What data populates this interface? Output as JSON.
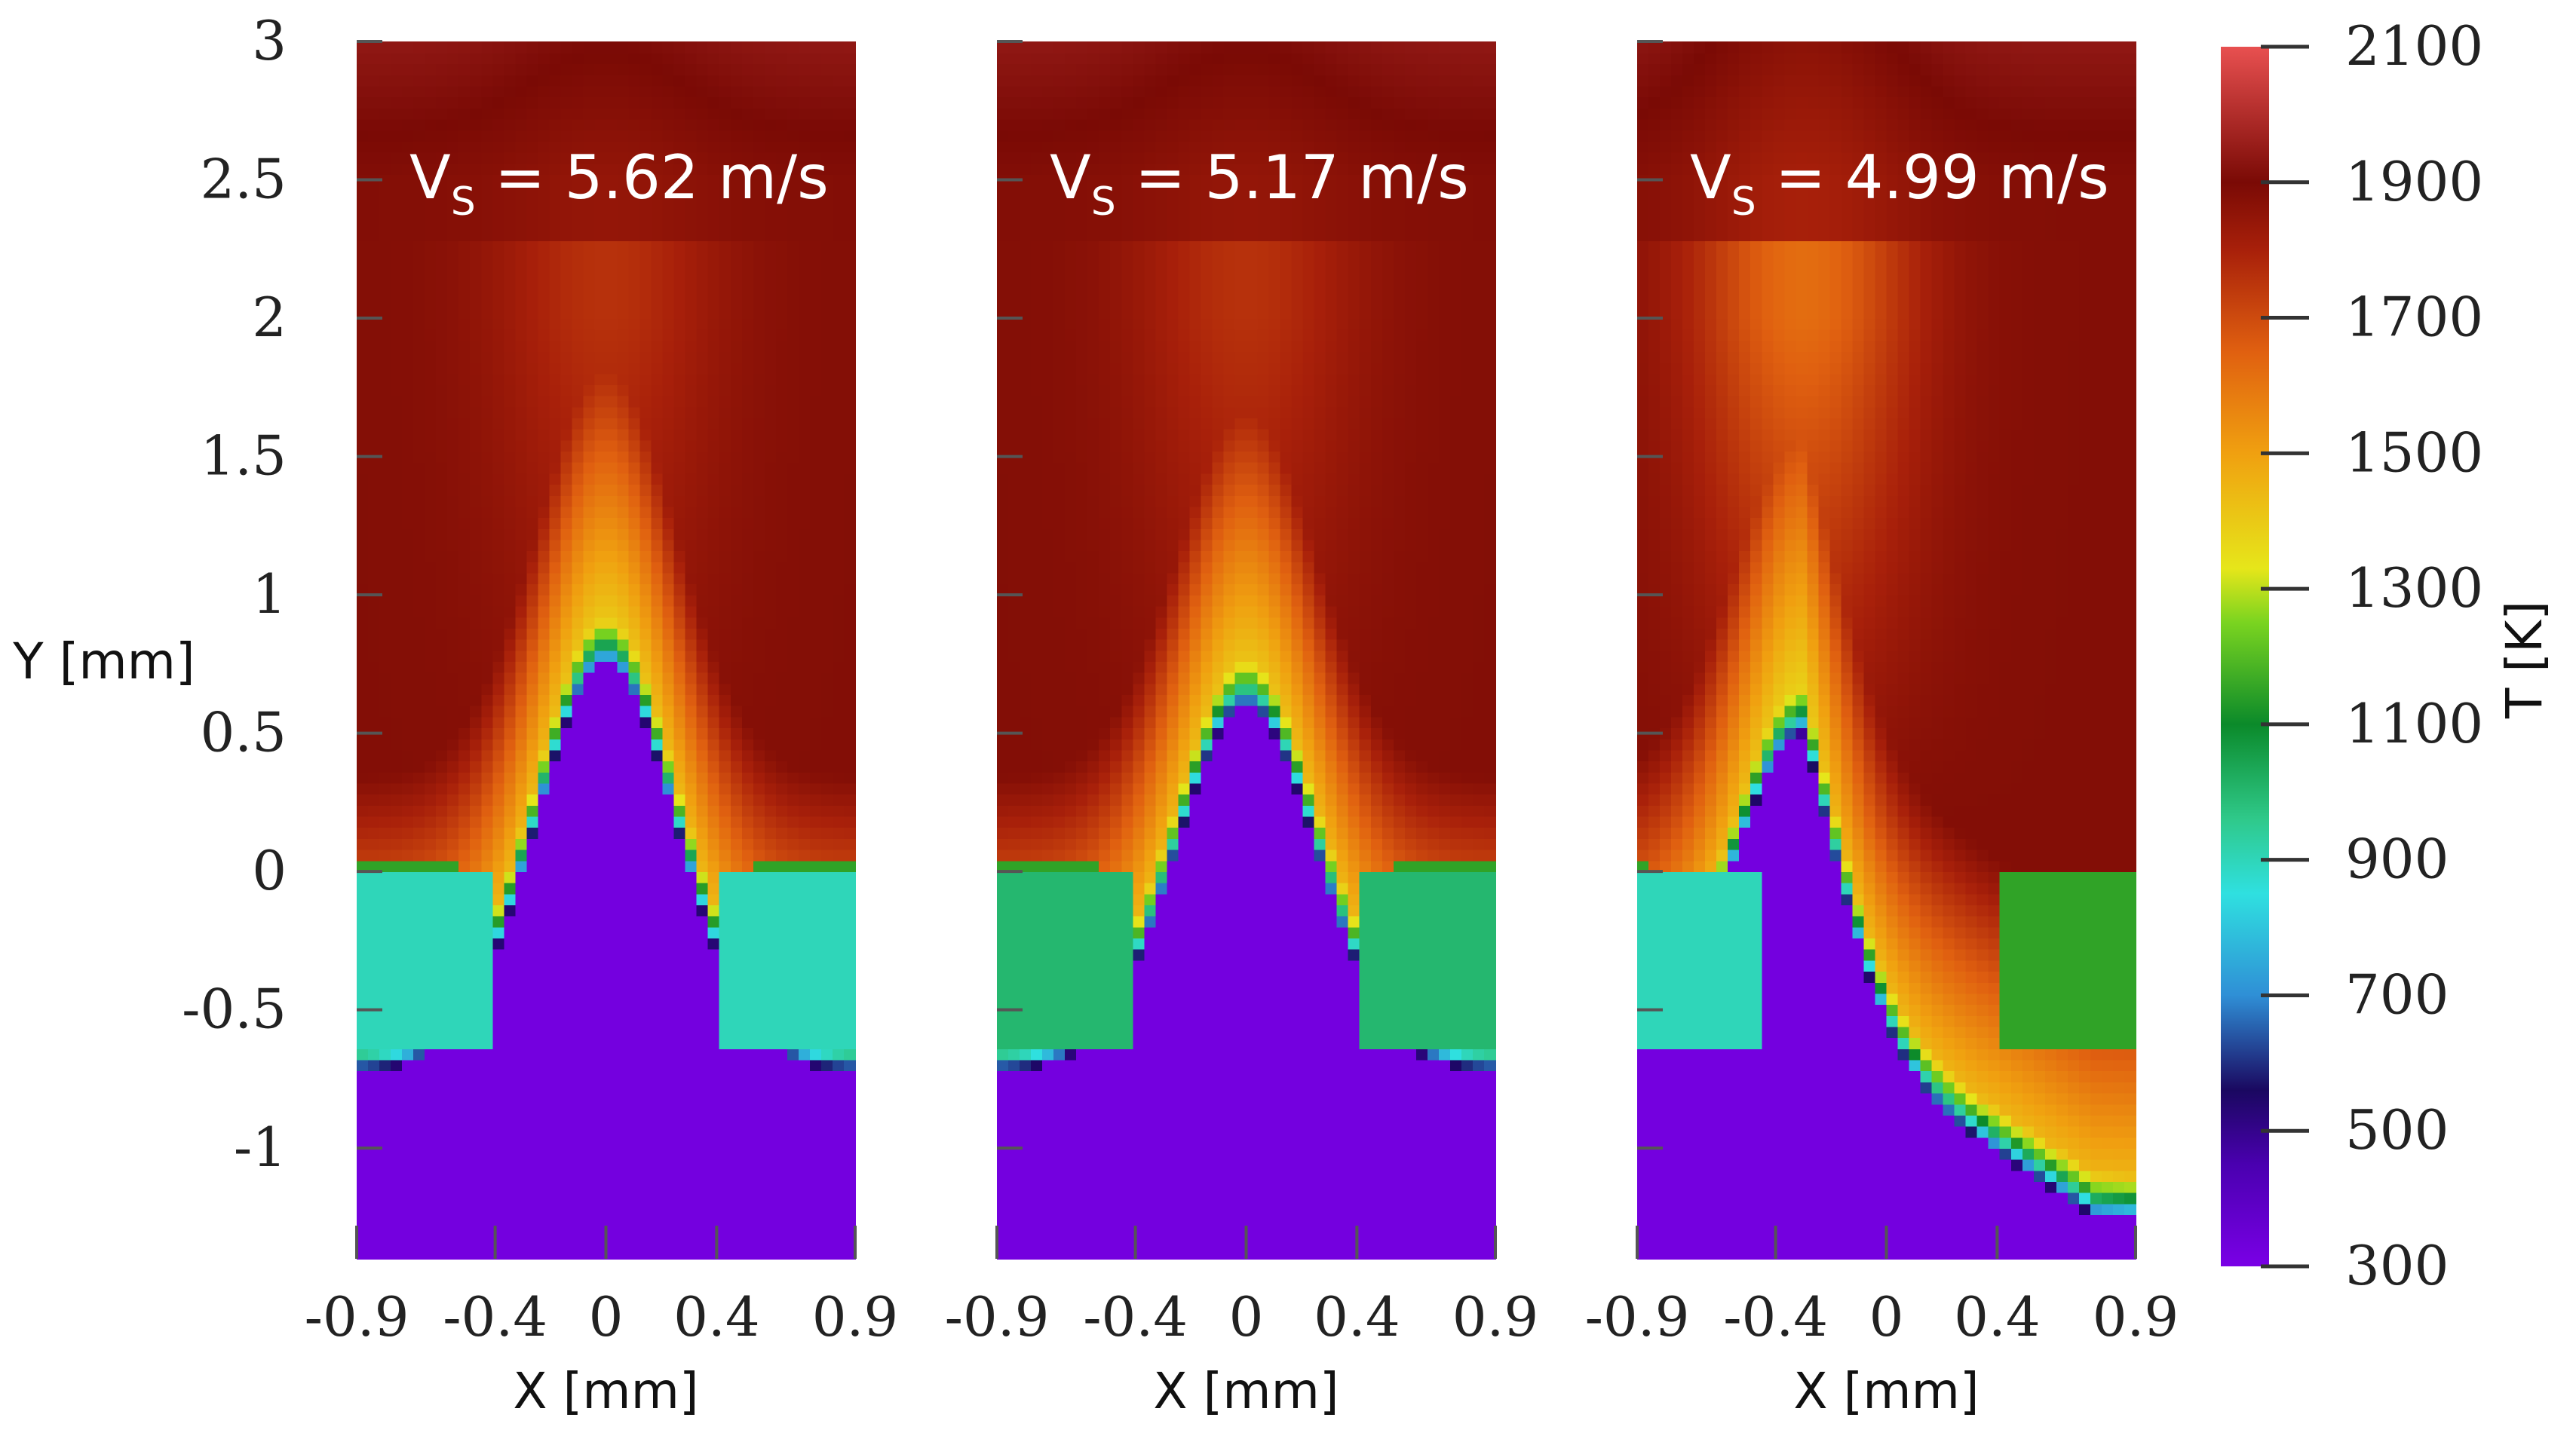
{
  "chart_data": {
    "type": "heatmap",
    "panels": [
      {
        "title_var": "V",
        "title_sub": "S",
        "title_value": " = 5.62 m/s",
        "xlabel": "X [mm]",
        "blob_center_x": 0.0,
        "blob_tip_y": 0.75,
        "right_block_temperature": 900
      },
      {
        "title_var": "V",
        "title_sub": "S",
        "title_value": " = 5.17 m/s",
        "xlabel": "X [mm]",
        "blob_center_x": 0.0,
        "blob_tip_y": 0.6,
        "right_block_temperature": 1000
      },
      {
        "title_var": "V",
        "title_sub": "S",
        "title_value": " = 4.99 m/s",
        "xlabel": "X [mm]",
        "blob_center_x": -0.3,
        "blob_tip_y": 0.5,
        "right_block_temperature": 1150
      }
    ],
    "x_ticks": [
      "-0.9",
      "-0.4",
      "0",
      "0.4",
      "0.9"
    ],
    "x_tick_values": [
      -0.9,
      -0.4,
      0,
      0.4,
      0.9
    ],
    "xlim": [
      -0.9,
      0.9
    ],
    "y_ticks": [
      "3",
      "2.5",
      "2",
      "1.5",
      "1",
      "0.5",
      "0",
      "-0.5",
      "-1"
    ],
    "y_tick_values": [
      3,
      2.5,
      2,
      1.5,
      1,
      0.5,
      0,
      -0.5,
      -1
    ],
    "ylim": [
      -1.4,
      3
    ],
    "ylabel": "Y [mm]",
    "colorbar": {
      "label": "T [K]",
      "range": [
        300,
        2100
      ],
      "ticks": [
        "2100",
        "1900",
        "1700",
        "1500",
        "1300",
        "1100",
        "900",
        "700",
        "500",
        "300"
      ],
      "tick_values": [
        2100,
        1900,
        1700,
        1500,
        1300,
        1100,
        900,
        700,
        500,
        300
      ],
      "stops": [
        {
          "value": 300,
          "color": "#7a00e6"
        },
        {
          "value": 450,
          "color": "#4a00b0"
        },
        {
          "value": 560,
          "color": "#1a0860"
        },
        {
          "value": 700,
          "color": "#2f8fd6"
        },
        {
          "value": 850,
          "color": "#2fe0e0"
        },
        {
          "value": 960,
          "color": "#2fc98a"
        },
        {
          "value": 1100,
          "color": "#0b8a2a"
        },
        {
          "value": 1250,
          "color": "#7ad420"
        },
        {
          "value": 1330,
          "color": "#e6e61a"
        },
        {
          "value": 1500,
          "color": "#f0a010"
        },
        {
          "value": 1650,
          "color": "#e06010"
        },
        {
          "value": 1800,
          "color": "#a8200a"
        },
        {
          "value": 1900,
          "color": "#7a0a05"
        },
        {
          "value": 2100,
          "color": "#e85050"
        }
      ]
    }
  }
}
